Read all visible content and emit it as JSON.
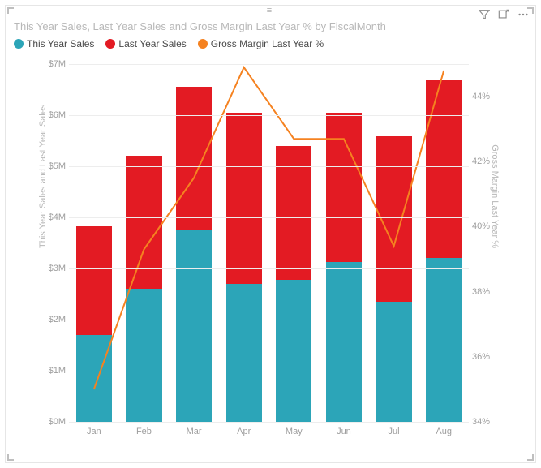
{
  "title": "This Year Sales, Last Year Sales and Gross Margin Last Year % by FiscalMonth",
  "top_handle_glyph": "≡",
  "icons": {
    "filter": "filter-icon",
    "focus": "focus-mode-icon",
    "more": "more-options-icon"
  },
  "legend": [
    {
      "label": "This Year Sales",
      "color": "#2ca5b8",
      "shape": "circle"
    },
    {
      "label": "Last Year Sales",
      "color": "#e31b23",
      "shape": "circle"
    },
    {
      "label": "Gross Margin Last Year %",
      "color": "#f58220",
      "shape": "circle"
    }
  ],
  "y_axis_left": {
    "label": "This Year Sales and Last Year Sales",
    "min": 0,
    "max": 7,
    "tick_step": 1,
    "tick_labels": [
      "$0M",
      "$1M",
      "$2M",
      "$3M",
      "$4M",
      "$5M",
      "$6M",
      "$7M"
    ]
  },
  "y_axis_right": {
    "label": "Gross Margin Last Year %",
    "min": 34,
    "max": 45,
    "tick_step": 2,
    "tick_labels": [
      "34%",
      "36%",
      "38%",
      "40%",
      "42%",
      "44%"
    ]
  },
  "categories": [
    "Jan",
    "Feb",
    "Mar",
    "Apr",
    "May",
    "Jun",
    "Jul",
    "Aug"
  ],
  "series": {
    "this_year_sales": {
      "color": "#2ca5b8",
      "values": [
        1.7,
        2.6,
        3.75,
        2.7,
        2.78,
        3.12,
        2.35,
        3.2
      ]
    },
    "last_year_sales": {
      "color": "#e31b23",
      "values": [
        2.13,
        2.6,
        2.8,
        3.35,
        2.62,
        2.93,
        3.23,
        3.48
      ]
    },
    "gross_margin_pct": {
      "color": "#f58220",
      "line_width": 2,
      "values": [
        35.0,
        39.3,
        41.5,
        44.9,
        42.7,
        42.7,
        39.4,
        44.8
      ]
    }
  },
  "chart": {
    "type": "stacked-bar-with-line",
    "background_color": "#ffffff",
    "grid_color": "#ededed",
    "border_color": "#e6e6e6",
    "bar_width_ratio": 0.72,
    "title_fontsize": 13,
    "title_color": "#b8b8b8",
    "legend_fontsize": 12,
    "tick_fontsize": 11,
    "tick_color": "#9e9e9e",
    "axis_label_fontsize": 11,
    "axis_label_color": "#b8b8b8"
  }
}
